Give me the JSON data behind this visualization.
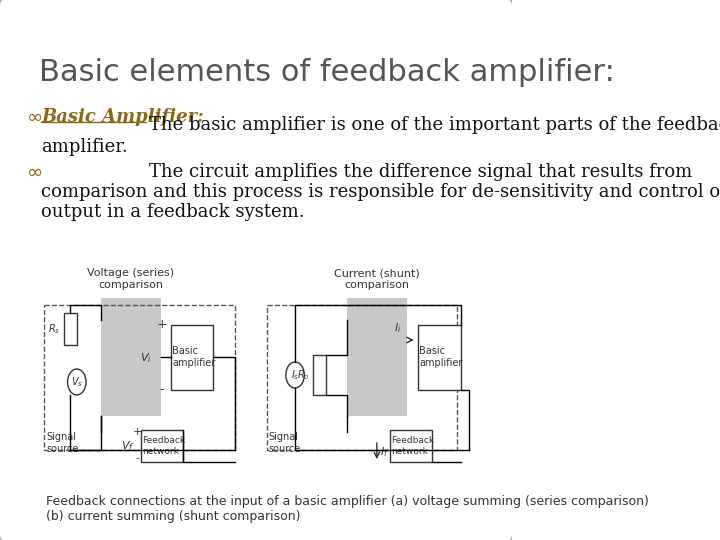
{
  "title": "Basic elements of feedback amplifier:",
  "title_fontsize": 22,
  "title_color": "#555555",
  "background_color": "#ffffff",
  "border_color": "#aaaaaa",
  "bullet1_label": "Basic Amplifier:",
  "bullet1_label_color": "#8B6914",
  "bullet1_text_line1": "The basic amplifier is one of the important parts of the feedback",
  "bullet1_text_line2": "amplifier.",
  "bullet2_text_line1": "The circuit amplifies the difference signal that results from",
  "bullet2_text_line2": "comparison and this process is responsible for de-sensitivity and control of the",
  "bullet2_text_line3": "output in a feedback system.",
  "text_fontsize": 13,
  "text_color": "#111111",
  "diagram_caption": "Feedback connections at the input of a basic amplifier (a) voltage summing (series comparison)\n(b) current summing (shunt comparison)",
  "diagram_caption_fontsize": 9,
  "diagram_caption_color": "#333333",
  "left_diagram_title": "Voltage (series)\ncomparison",
  "right_diagram_title": "Current (shunt)\ncomparison",
  "diagram_title_fontsize": 8
}
